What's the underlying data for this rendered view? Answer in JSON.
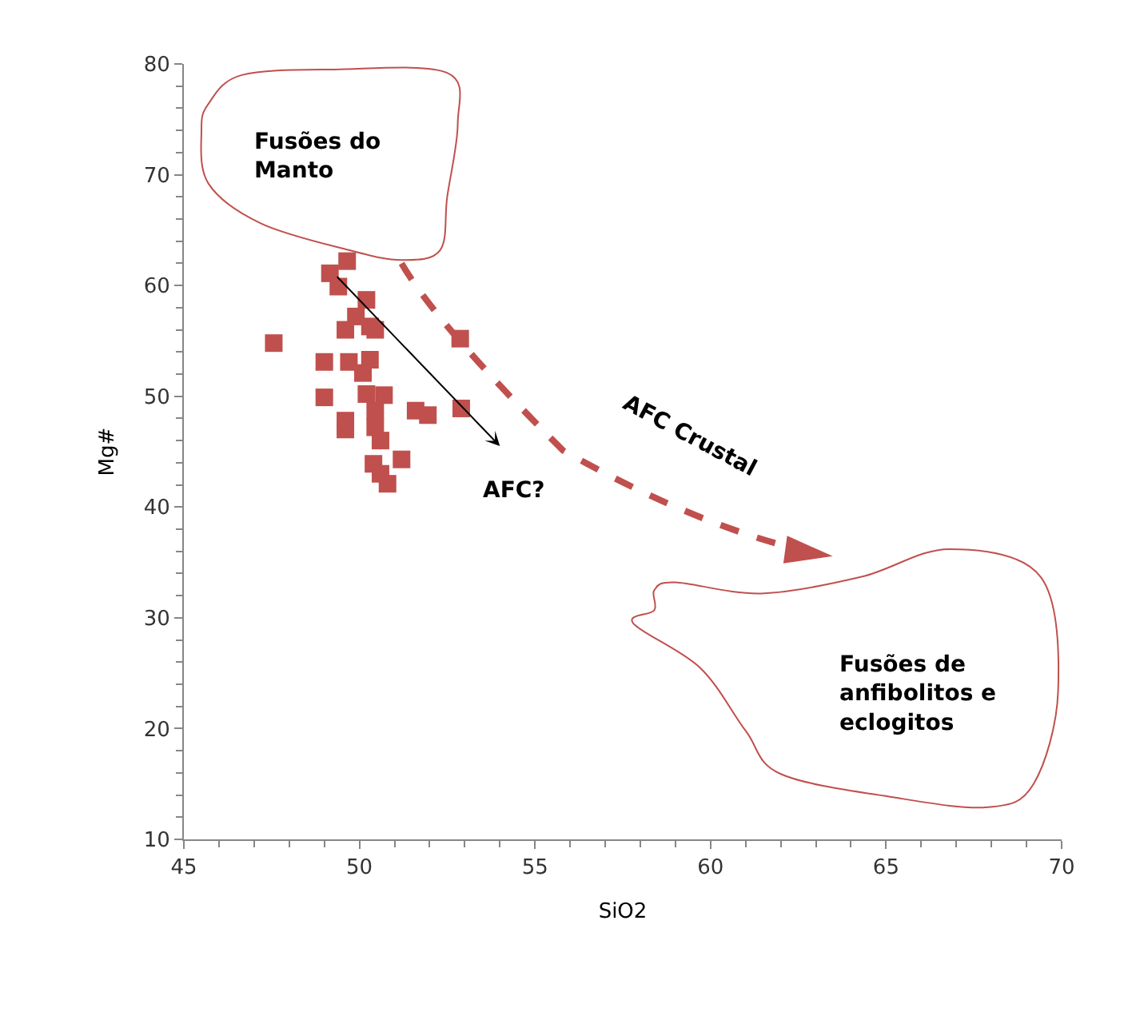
{
  "chart_data": {
    "type": "scatter",
    "xlabel": "SiO2",
    "ylabel": "Mg#",
    "xlim": [
      45,
      70
    ],
    "xticks": [
      45,
      50,
      55,
      60,
      65,
      70
    ],
    "ylim": [
      10,
      80
    ],
    "yticks": [
      10,
      20,
      30,
      40,
      50,
      60,
      70,
      80
    ],
    "grid": false,
    "legend": false,
    "marker": "square",
    "series": [
      {
        "color": "#c0504d",
        "x": [
          49.65,
          49.16,
          49.4,
          50.2,
          49.9,
          50.3,
          49.6,
          50.45,
          47.56,
          52.87,
          49.0,
          49.7,
          50.3,
          50.1,
          49.0,
          50.2,
          50.7,
          49.6,
          49.6,
          50.45,
          50.45,
          50.6,
          51.6,
          51.95,
          52.9,
          50.4,
          51.2,
          50.6,
          50.8
        ],
        "values": [
          62.2,
          61.1,
          59.9,
          58.7,
          57.2,
          56.3,
          56.0,
          56.0,
          54.8,
          55.2,
          53.1,
          53.1,
          53.3,
          52.1,
          49.9,
          50.2,
          50.1,
          47.8,
          47.0,
          48.7,
          47.2,
          46.0,
          48.7,
          48.3,
          48.9,
          43.9,
          44.3,
          43.0,
          42.1
        ]
      }
    ],
    "annotations": [
      "Fusões do\nManto",
      "AFC?",
      "AFC Crustal",
      "Fusões de\nanfibolitos e\neclogitos"
    ]
  }
}
